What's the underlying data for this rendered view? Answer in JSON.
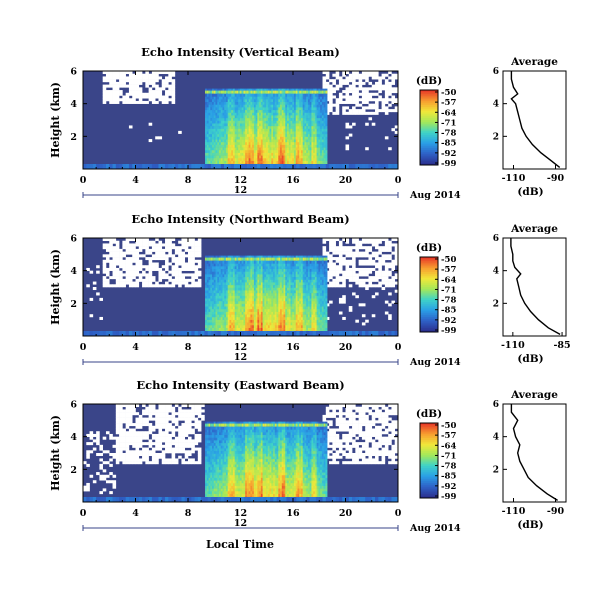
{
  "shared": {
    "x_ticks": [
      "0",
      "4",
      "8",
      "12",
      "16",
      "20",
      "0"
    ],
    "y_ticks": [
      "6",
      "4",
      "2"
    ],
    "ylabel": "Height (km)",
    "day_label": "12",
    "date_label": "Aug 2014",
    "xlabel": "Local Time",
    "colorbar_unit": "(dB)",
    "colorbar_ticks": [
      "-50",
      "-57",
      "-64",
      "-71",
      "-78",
      "-85",
      "-92",
      "-99"
    ],
    "avg_title": "Average",
    "avg_unit": "(dB)",
    "background_color": "#3a4589",
    "colormap": [
      "#2b3190",
      "#2e62c8",
      "#2aa0e6",
      "#3fd3c8",
      "#a3e85a",
      "#f0e83a",
      "#f8a030",
      "#e83c28"
    ]
  },
  "chart_data": [
    {
      "type": "heatmap",
      "title": "Echo Intensity (Vertical Beam)",
      "x_range_hours": [
        0,
        24
      ],
      "y_range_km": [
        0,
        6
      ],
      "color_range_db": [
        -99,
        -50
      ],
      "avg_profile": {
        "xticks": [
          "-110",
          "-90"
        ],
        "xlim": [
          -115,
          -85
        ],
        "height_km": [
          0.1,
          0.5,
          1,
          1.5,
          2,
          2.5,
          3,
          3.5,
          4,
          4.3,
          4.6,
          5,
          5.5,
          6
        ],
        "value_db": [
          -88,
          -92,
          -97,
          -101,
          -104,
          -106,
          -107,
          -108,
          -109,
          -111,
          -108,
          -110,
          -111,
          -111
        ]
      }
    },
    {
      "type": "heatmap",
      "title": "Echo Intensity (Northward Beam)",
      "x_range_hours": [
        0,
        24
      ],
      "y_range_km": [
        0,
        6
      ],
      "color_range_db": [
        -99,
        -50
      ],
      "avg_profile": {
        "xticks": [
          "-110",
          "-85"
        ],
        "xlim": [
          -115,
          -83
        ],
        "height_km": [
          0.1,
          0.5,
          1,
          1.5,
          2,
          2.5,
          3,
          3.5,
          3.8,
          4.2,
          4.6,
          5,
          5.5,
          6
        ],
        "value_db": [
          -86,
          -92,
          -97,
          -101,
          -104,
          -106,
          -107,
          -108,
          -106,
          -109,
          -110,
          -110,
          -111,
          -111
        ]
      }
    },
    {
      "type": "heatmap",
      "title": "Echo Intensity (Eastward Beam)",
      "x_range_hours": [
        0,
        24
      ],
      "y_range_km": [
        0,
        6
      ],
      "color_range_db": [
        -99,
        -50
      ],
      "avg_profile": {
        "xticks": [
          "-110",
          "-90"
        ],
        "xlim": [
          -115,
          -85
        ],
        "height_km": [
          0.1,
          0.5,
          1,
          1.5,
          2,
          2.5,
          3,
          3.5,
          4,
          4.5,
          5,
          5.5,
          6
        ],
        "value_db": [
          -89,
          -94,
          -99,
          -103,
          -105,
          -107,
          -108,
          -107,
          -109,
          -110,
          -108,
          -111,
          -111
        ]
      }
    }
  ]
}
